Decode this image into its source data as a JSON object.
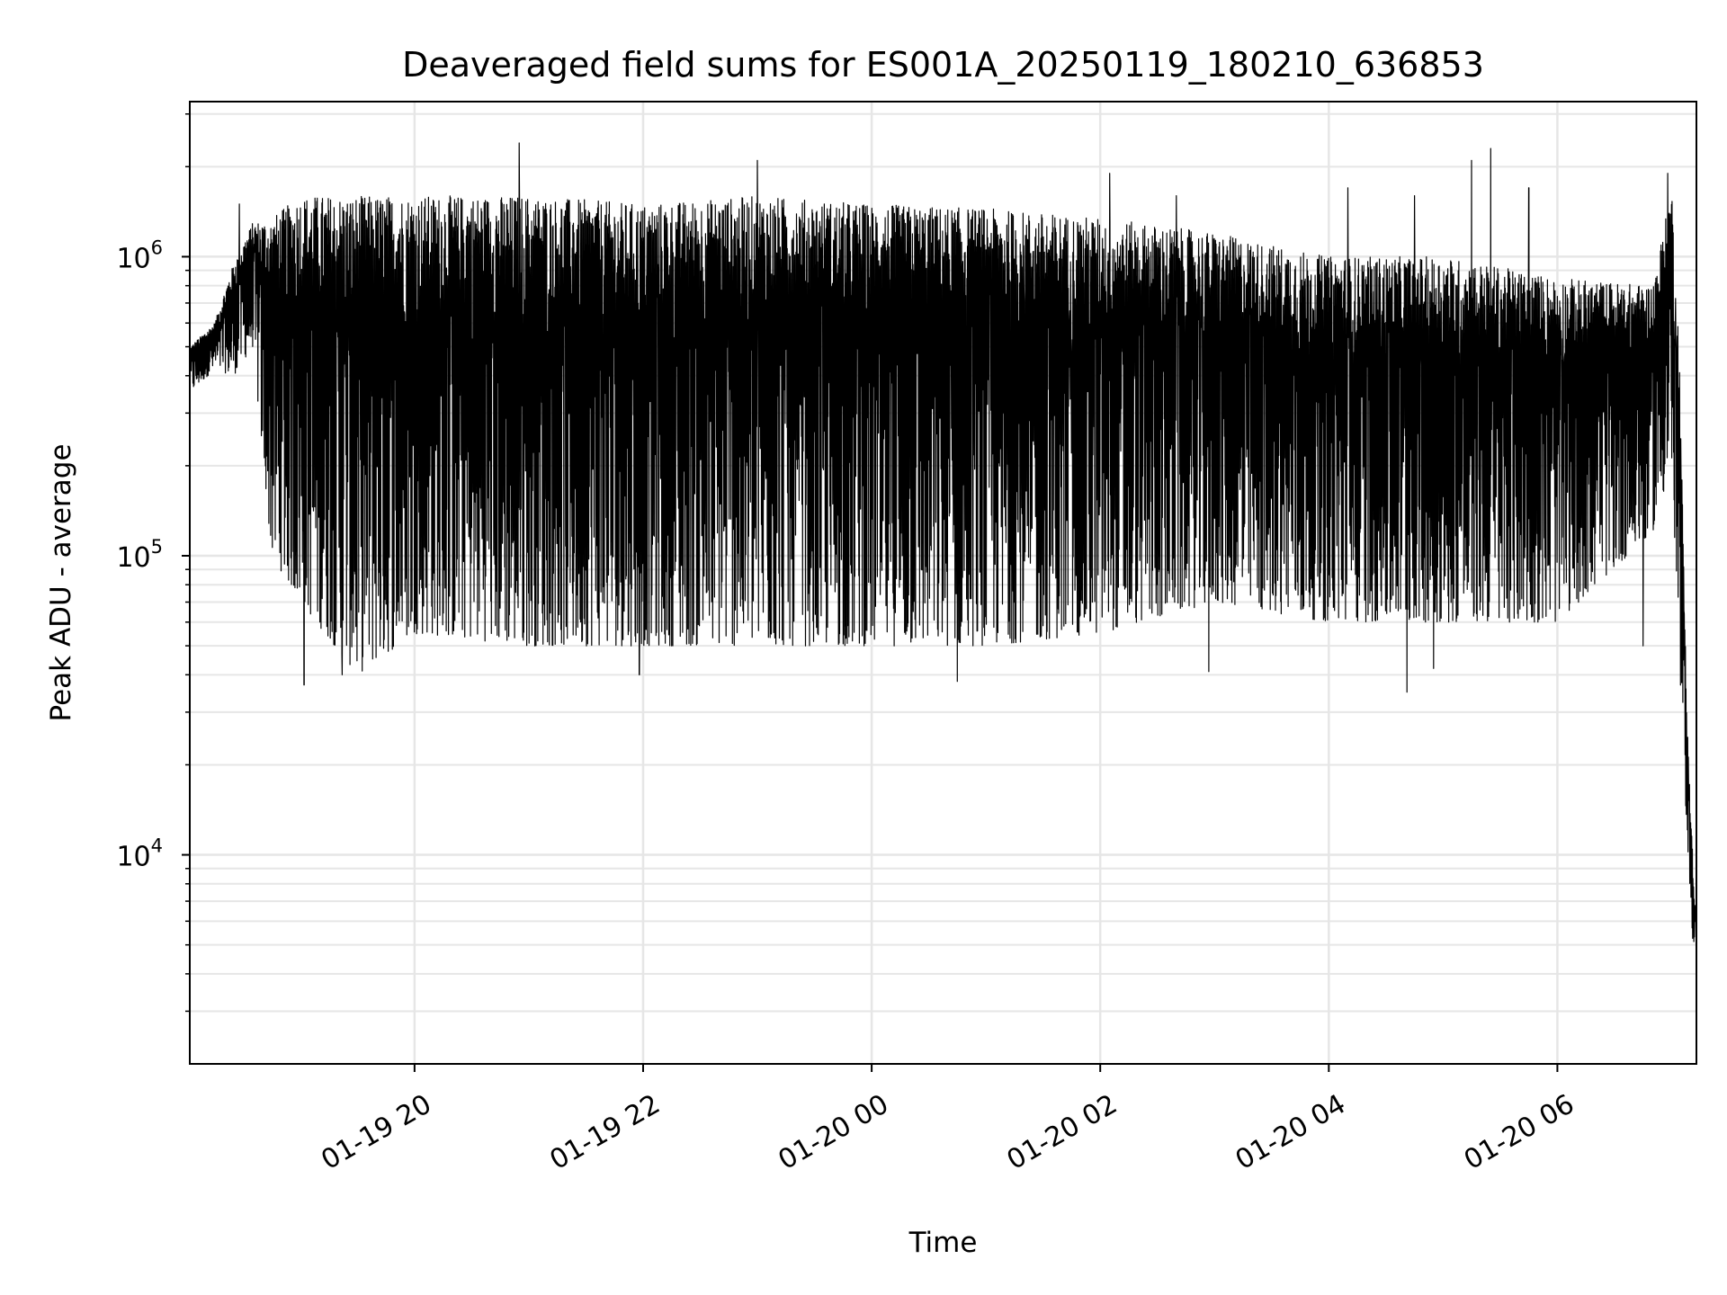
{
  "chart_data": {
    "type": "line",
    "title": "Deaveraged field sums for ES001A_20250119_180210_636853",
    "xlabel": "Time",
    "ylabel": "Peak ADU - average",
    "y_scale": "log",
    "ylim": [
      2000,
      3300000
    ],
    "xlim": [
      "2025-01-19 18:02",
      "2025-01-20 07:13"
    ],
    "grid": true,
    "line_color": "#000000",
    "grid_color": "#e6e6e6",
    "x_ticks": [
      {
        "value": "2025-01-19 20:00",
        "label": "01-19 20"
      },
      {
        "value": "2025-01-19 22:00",
        "label": "01-19 22"
      },
      {
        "value": "2025-01-20 00:00",
        "label": "01-20 00"
      },
      {
        "value": "2025-01-20 02:00",
        "label": "01-20 02"
      },
      {
        "value": "2025-01-20 04:00",
        "label": "01-20 04"
      },
      {
        "value": "2025-01-20 06:00",
        "label": "01-20 06"
      }
    ],
    "y_ticks": [
      {
        "value": 10000,
        "base": "10",
        "exp": "4"
      },
      {
        "value": 100000,
        "base": "10",
        "exp": "5"
      },
      {
        "value": 1000000,
        "base": "10",
        "exp": "6"
      }
    ],
    "series": [
      {
        "envelope": [
          {
            "t": "2025-01-19 18:02",
            "hi": 500000,
            "lo": 350000
          },
          {
            "t": "2025-01-19 18:15",
            "hi": 600000,
            "lo": 420000
          },
          {
            "t": "2025-01-19 18:25",
            "hi": 950000,
            "lo": 400000
          },
          {
            "t": "2025-01-19 18:35",
            "hi": 1300000,
            "lo": 500000
          },
          {
            "t": "2025-01-19 18:45",
            "hi": 1350000,
            "lo": 100000
          },
          {
            "t": "2025-01-19 19:00",
            "hi": 1600000,
            "lo": 70000
          },
          {
            "t": "2025-01-19 19:30",
            "hi": 1600000,
            "lo": 40000
          },
          {
            "t": "2025-01-19 20:00",
            "hi": 1600000,
            "lo": 55000
          },
          {
            "t": "2025-01-19 21:00",
            "hi": 1600000,
            "lo": 50000
          },
          {
            "t": "2025-01-19 22:00",
            "hi": 1500000,
            "lo": 50000
          },
          {
            "t": "2025-01-19 23:00",
            "hi": 1600000,
            "lo": 50000
          },
          {
            "t": "2025-01-20 00:00",
            "hi": 1500000,
            "lo": 50000
          },
          {
            "t": "2025-01-20 01:00",
            "hi": 1450000,
            "lo": 50000
          },
          {
            "t": "2025-01-20 02:00",
            "hi": 1350000,
            "lo": 55000
          },
          {
            "t": "2025-01-20 03:00",
            "hi": 1200000,
            "lo": 70000
          },
          {
            "t": "2025-01-20 04:00",
            "hi": 1000000,
            "lo": 60000
          },
          {
            "t": "2025-01-20 05:00",
            "hi": 1000000,
            "lo": 60000
          },
          {
            "t": "2025-01-20 06:00",
            "hi": 850000,
            "lo": 60000
          },
          {
            "t": "2025-01-20 06:50",
            "hi": 800000,
            "lo": 120000
          },
          {
            "t": "2025-01-20 07:00",
            "hi": 1700000,
            "lo": 200000
          },
          {
            "t": "2025-01-20 07:04",
            "hi": 500000,
            "lo": 40000
          },
          {
            "t": "2025-01-20 07:08",
            "hi": 30000,
            "lo": 12000
          },
          {
            "t": "2025-01-20 07:12",
            "hi": 7000,
            "lo": 4000
          }
        ],
        "spikes": [
          {
            "t": "2025-01-19 18:28",
            "value": 1500000
          },
          {
            "t": "2025-01-19 20:55",
            "value": 2400000
          },
          {
            "t": "2025-01-19 23:00",
            "value": 2100000
          },
          {
            "t": "2025-01-20 02:05",
            "value": 1900000
          },
          {
            "t": "2025-01-20 02:40",
            "value": 1600000
          },
          {
            "t": "2025-01-20 04:10",
            "value": 1700000
          },
          {
            "t": "2025-01-20 04:45",
            "value": 1600000
          },
          {
            "t": "2025-01-20 05:15",
            "value": 2100000
          },
          {
            "t": "2025-01-20 05:25",
            "value": 2300000
          },
          {
            "t": "2025-01-20 05:45",
            "value": 1700000
          },
          {
            "t": "2025-01-20 06:58",
            "value": 1900000
          }
        ],
        "dips": [
          {
            "t": "2025-01-19 19:02",
            "value": 37000
          },
          {
            "t": "2025-01-19 19:22",
            "value": 40000
          },
          {
            "t": "2025-01-19 21:58",
            "value": 40000
          },
          {
            "t": "2025-01-20 00:45",
            "value": 38000
          },
          {
            "t": "2025-01-20 02:57",
            "value": 41000
          },
          {
            "t": "2025-01-20 04:41",
            "value": 35000
          },
          {
            "t": "2025-01-20 04:55",
            "value": 42000
          },
          {
            "t": "2025-01-20 06:45",
            "value": 50000
          }
        ]
      }
    ]
  }
}
